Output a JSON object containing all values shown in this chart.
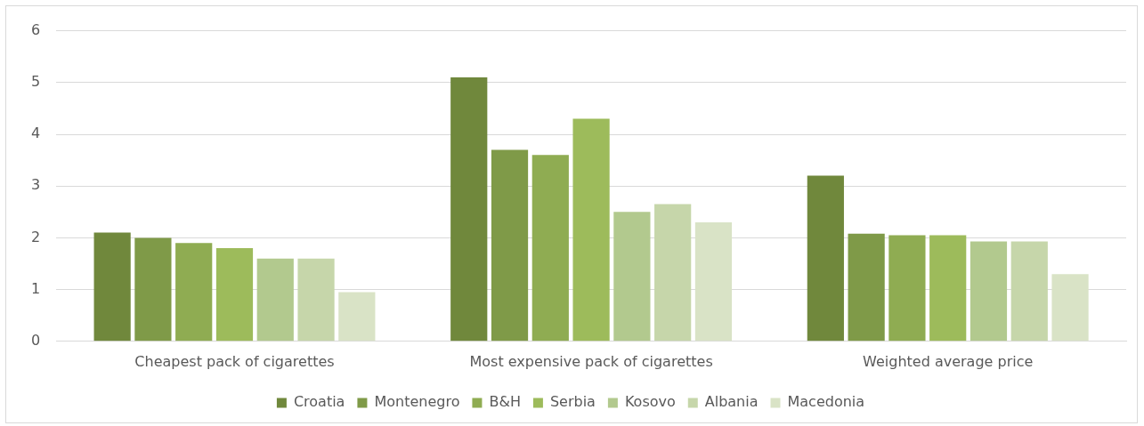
{
  "chart_data": {
    "type": "bar",
    "categories": [
      "Cheapest pack of cigarettes",
      "Most expensive pack of cigarettes",
      "Weighted average price"
    ],
    "series": [
      {
        "name": "Croatia",
        "color": "#70883c",
        "values": [
          2.1,
          5.1,
          3.2
        ]
      },
      {
        "name": "Montenegro",
        "color": "#7f9a48",
        "values": [
          2.0,
          3.7,
          2.08
        ]
      },
      {
        "name": "B&H",
        "color": "#8fac52",
        "values": [
          1.9,
          3.6,
          2.05
        ]
      },
      {
        "name": "Serbia",
        "color": "#9dbb5b",
        "values": [
          1.8,
          4.3,
          2.05
        ]
      },
      {
        "name": "Kosovo",
        "color": "#b2c98e",
        "values": [
          1.6,
          2.5,
          1.93
        ]
      },
      {
        "name": "Albania",
        "color": "#c6d6aa",
        "values": [
          1.6,
          2.65,
          1.93
        ]
      },
      {
        "name": "Macedonia",
        "color": "#d9e3c6",
        "values": [
          0.95,
          2.3,
          1.3
        ]
      }
    ],
    "ylim": [
      0,
      6
    ],
    "yticks": [
      0,
      1,
      2,
      3,
      4,
      5,
      6
    ],
    "grid": "y",
    "legend": "bottom"
  }
}
